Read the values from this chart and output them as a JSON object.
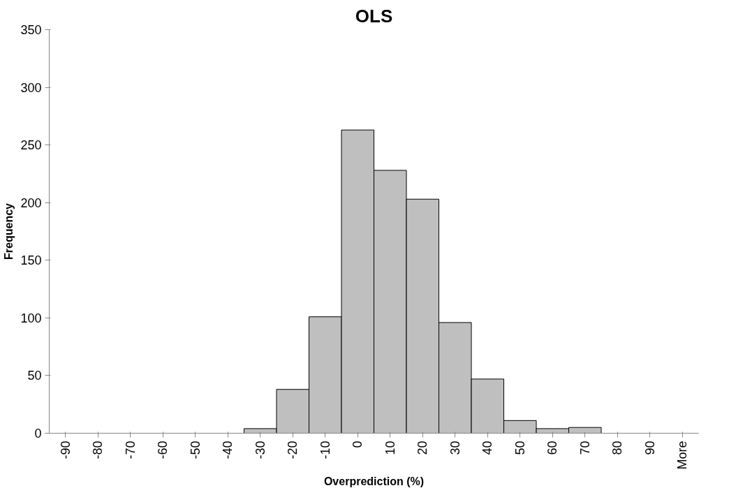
{
  "chart_data": {
    "type": "bar",
    "title": "OLS",
    "xlabel": "Overprediction (%)",
    "ylabel": "Frequency",
    "categories": [
      "-90",
      "-80",
      "-70",
      "-60",
      "-50",
      "-40",
      "-30",
      "-20",
      "-10",
      "0",
      "10",
      "20",
      "30",
      "40",
      "50",
      "60",
      "70",
      "80",
      "90",
      "More"
    ],
    "values": [
      0,
      0,
      0,
      0,
      0,
      0,
      4,
      38,
      101,
      263,
      228,
      203,
      96,
      47,
      11,
      4,
      5,
      0,
      0,
      0
    ],
    "color": "#bfbfbf",
    "ylim": [
      0,
      350
    ],
    "yticks": [
      0,
      50,
      100,
      150,
      200,
      250,
      300,
      350
    ],
    "grid": false
  }
}
